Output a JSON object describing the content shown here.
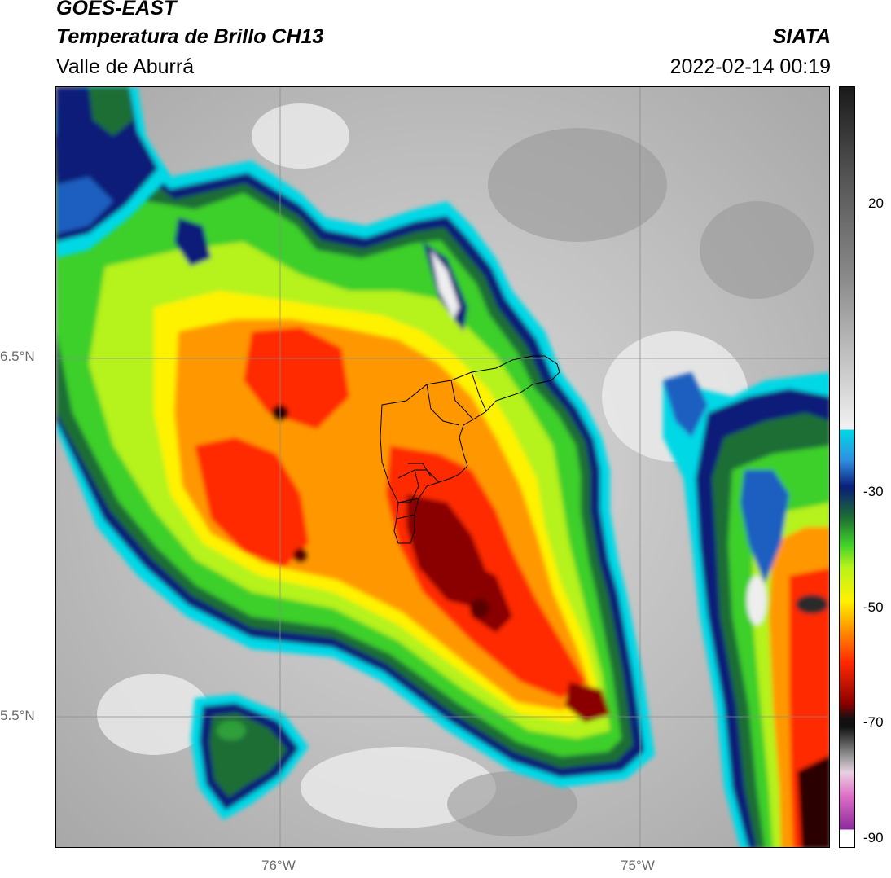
{
  "header": {
    "satellite": "GOES-EAST",
    "product": "Temperatura de Brillo CH13",
    "region": "Valle de Aburrá",
    "brand": "SIATA",
    "datetime": "2022-02-14 00:19"
  },
  "map": {
    "lat_labels": [
      "6.5°N",
      "5.5°N"
    ],
    "lon_labels": [
      "76°W",
      "75°W"
    ]
  },
  "colorbar": {
    "tick_labels": [
      "20",
      "-30",
      "-50",
      "-70",
      "-90"
    ],
    "palette": {
      "cyan": "#00d8e6",
      "blue": "#1f5fc0",
      "navy": "#0a1e78",
      "dark_green": "#1d6e34",
      "green": "#3ecf2a",
      "lime": "#b6f21c",
      "yellow": "#fff200",
      "orange": "#ff9800",
      "red": "#ff2a00",
      "dark_red": "#8a0000",
      "black": "#111111",
      "pink": "#e070c8",
      "purple": "#8a2a9a"
    }
  }
}
